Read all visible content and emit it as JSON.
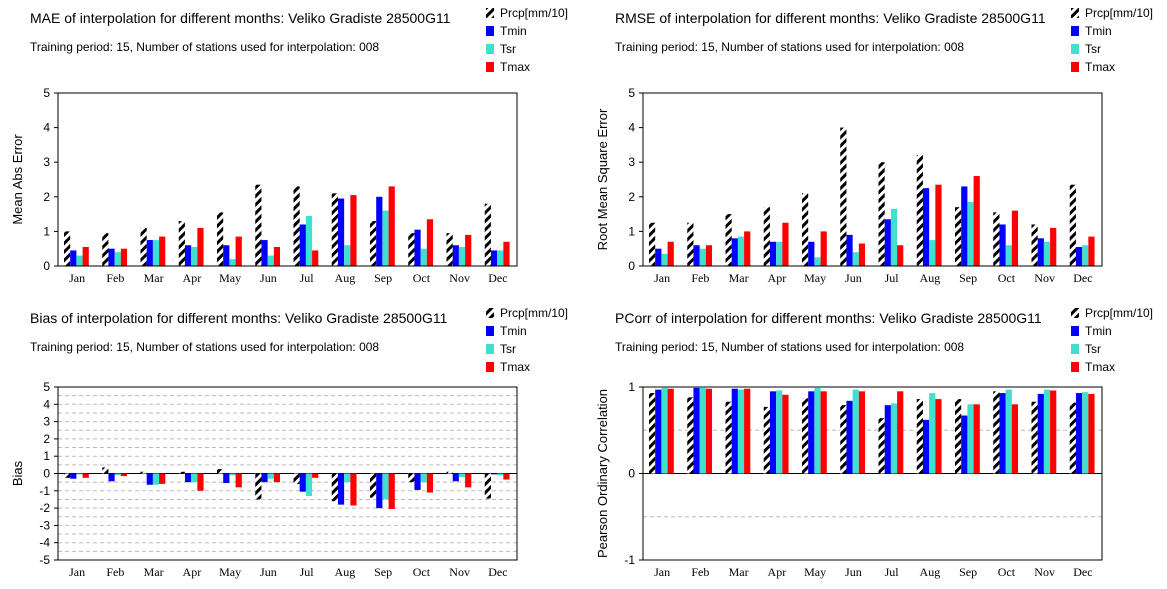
{
  "colors": {
    "Prcp": "#000000",
    "Tmin": "#0000ff",
    "Tsr": "#40e0d0",
    "Tmax": "#ff0000",
    "grid": "#bbbbbb"
  },
  "legend_names": [
    "Prcp[mm/10]",
    "Tmin",
    "Tsr",
    "Tmax"
  ],
  "chart_data": [
    {
      "type": "bar",
      "title": "MAE of interpolation for different months: Veliko Gradiste  28500G11",
      "subtitle": "Training period: 15, Number of stations used for interpolation: 008",
      "ylabel": "Mean Abs Error",
      "ylim": [
        0,
        5
      ],
      "yticks": [
        0,
        1,
        2,
        3,
        4,
        5
      ],
      "grid": false,
      "legend": "top-right",
      "categories": [
        "Jan",
        "Feb",
        "Mar",
        "Apr",
        "May",
        "Jun",
        "Jul",
        "Aug",
        "Sep",
        "Oct",
        "Nov",
        "Dec"
      ],
      "series": [
        {
          "name": "Prcp[mm/10]",
          "values": [
            1.0,
            0.95,
            1.1,
            1.3,
            1.55,
            2.35,
            2.3,
            2.1,
            1.3,
            0.95,
            0.95,
            1.8
          ]
        },
        {
          "name": "Tmin",
          "values": [
            0.45,
            0.5,
            0.75,
            0.6,
            0.6,
            0.75,
            1.2,
            1.95,
            2.0,
            1.05,
            0.6,
            0.45
          ]
        },
        {
          "name": "Tsr",
          "values": [
            0.3,
            0.4,
            0.75,
            0.55,
            0.2,
            0.3,
            1.45,
            0.6,
            1.6,
            0.5,
            0.55,
            0.45
          ]
        },
        {
          "name": "Tmax",
          "values": [
            0.55,
            0.5,
            0.85,
            1.1,
            0.85,
            0.55,
            0.45,
            2.05,
            2.3,
            1.35,
            0.9,
            0.7
          ]
        }
      ]
    },
    {
      "type": "bar",
      "title": "RMSE of interpolation for different months: Veliko Gradiste  28500G11",
      "subtitle": "Training period: 15, Number of stations used for interpolation: 008",
      "ylabel": "Root Mean Square Error",
      "ylim": [
        0,
        5
      ],
      "yticks": [
        0,
        1,
        2,
        3,
        4,
        5
      ],
      "grid": false,
      "legend": "top-right",
      "categories": [
        "Jan",
        "Feb",
        "Mar",
        "Apr",
        "May",
        "Jun",
        "Jul",
        "Aug",
        "Sep",
        "Oct",
        "Nov",
        "Dec"
      ],
      "series": [
        {
          "name": "Prcp[mm/10]",
          "values": [
            1.25,
            1.25,
            1.5,
            1.7,
            2.1,
            4.0,
            3.0,
            3.2,
            1.7,
            1.55,
            1.2,
            2.35
          ]
        },
        {
          "name": "Tmin",
          "values": [
            0.5,
            0.6,
            0.8,
            0.7,
            0.7,
            0.9,
            1.35,
            2.25,
            2.3,
            1.2,
            0.8,
            0.55
          ]
        },
        {
          "name": "Tsr",
          "values": [
            0.35,
            0.5,
            0.85,
            0.7,
            0.25,
            0.4,
            1.65,
            0.75,
            1.85,
            0.6,
            0.7,
            0.6
          ]
        },
        {
          "name": "Tmax",
          "values": [
            0.7,
            0.6,
            1.0,
            1.25,
            1.0,
            0.65,
            0.6,
            2.35,
            2.6,
            1.6,
            1.1,
            0.85
          ]
        }
      ]
    },
    {
      "type": "bar",
      "title": "Bias of interpolation for different months: Veliko Gradiste  28500G11",
      "subtitle": "Training period: 15, Number of stations used for interpolation: 008",
      "ylabel": "Bias",
      "ylim": [
        -5,
        5
      ],
      "yticks": [
        -5,
        -4,
        -3,
        -2,
        -1,
        0,
        1,
        2,
        3,
        4,
        5
      ],
      "grid": true,
      "legend": "top-right",
      "categories": [
        "Jan",
        "Feb",
        "Mar",
        "Apr",
        "May",
        "Jun",
        "Jul",
        "Aug",
        "Sep",
        "Oct",
        "Nov",
        "Dec"
      ],
      "series": [
        {
          "name": "Prcp[mm/10]",
          "values": [
            -0.25,
            0.35,
            0.1,
            0.1,
            0.25,
            -1.5,
            -0.6,
            -1.6,
            -1.4,
            -0.5,
            0.1,
            -1.45
          ]
        },
        {
          "name": "Tmin",
          "values": [
            -0.3,
            -0.45,
            -0.65,
            -0.5,
            -0.55,
            -0.5,
            -1.05,
            -1.8,
            -2.0,
            -0.95,
            -0.45,
            -0.05
          ]
        },
        {
          "name": "Tsr",
          "values": [
            -0.05,
            -0.1,
            -0.65,
            -0.5,
            -0.1,
            -0.3,
            -1.3,
            -0.5,
            -1.5,
            -0.5,
            -0.2,
            -0.1
          ]
        },
        {
          "name": "Tmax",
          "values": [
            -0.25,
            -0.15,
            -0.6,
            -1.0,
            -0.8,
            -0.5,
            -0.25,
            -1.85,
            -2.05,
            -1.1,
            -0.8,
            -0.35
          ]
        }
      ]
    },
    {
      "type": "bar",
      "title": "PCorr of interpolation for different months: Veliko Gradiste  28500G11",
      "subtitle": "Training period: 15, Number of stations used for interpolation: 008",
      "ylabel": "Pearson Ordinary Correlation",
      "ylim": [
        -1,
        1
      ],
      "yticks": [
        -1,
        0,
        1
      ],
      "grid": true,
      "legend": "top-right",
      "categories": [
        "Jan",
        "Feb",
        "Mar",
        "Apr",
        "May",
        "Jun",
        "Jul",
        "Aug",
        "Sep",
        "Oct",
        "Nov",
        "Dec"
      ],
      "series": [
        {
          "name": "Prcp[mm/10]",
          "values": [
            0.93,
            0.88,
            0.83,
            0.77,
            0.87,
            0.79,
            0.64,
            0.86,
            0.86,
            0.95,
            0.83,
            0.82
          ]
        },
        {
          "name": "Tmin",
          "values": [
            0.97,
            0.99,
            0.98,
            0.95,
            0.95,
            0.84,
            0.79,
            0.62,
            0.67,
            0.93,
            0.92,
            0.93
          ]
        },
        {
          "name": "Tsr",
          "values": [
            0.99,
            0.99,
            0.97,
            0.96,
            0.99,
            0.97,
            0.81,
            0.93,
            0.8,
            0.97,
            0.97,
            0.94
          ]
        },
        {
          "name": "Tmax",
          "values": [
            0.98,
            0.98,
            0.98,
            0.91,
            0.95,
            0.95,
            0.95,
            0.86,
            0.8,
            0.8,
            0.96,
            0.92
          ]
        }
      ]
    }
  ]
}
